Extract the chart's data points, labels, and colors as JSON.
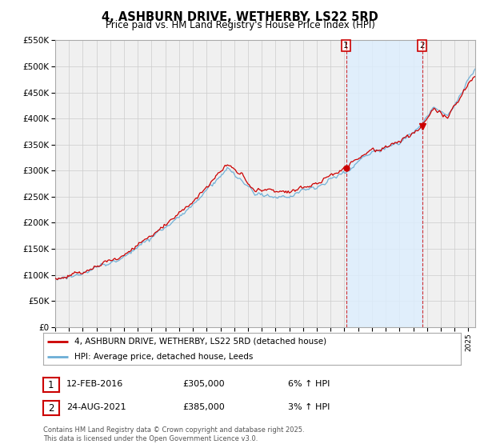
{
  "title": "4, ASHBURN DRIVE, WETHERBY, LS22 5RD",
  "subtitle": "Price paid vs. HM Land Registry's House Price Index (HPI)",
  "legend_entry1": "4, ASHBURN DRIVE, WETHERBY, LS22 5RD (detached house)",
  "legend_entry2": "HPI: Average price, detached house, Leeds",
  "annotation1_date": "12-FEB-2016",
  "annotation1_price": "£305,000",
  "annotation1_hpi": "6% ↑ HPI",
  "annotation2_date": "24-AUG-2021",
  "annotation2_price": "£385,000",
  "annotation2_hpi": "3% ↑ HPI",
  "footnote": "Contains HM Land Registry data © Crown copyright and database right 2025.\nThis data is licensed under the Open Government Licence v3.0.",
  "vline1_x": 2016.12,
  "vline2_x": 2021.65,
  "sale1_price": 305000,
  "sale2_price": 385000,
  "ylim_min": 0,
  "ylim_max": 550000,
  "xlim_min": 1995,
  "xlim_max": 2025.5,
  "line1_color": "#cc0000",
  "line2_color": "#6baed6",
  "vline_color": "#cc0000",
  "shade_color": "#ddeeff",
  "grid_color": "#cccccc",
  "bg_color": "#ffffff",
  "plot_bg_color": "#f0f0f0"
}
